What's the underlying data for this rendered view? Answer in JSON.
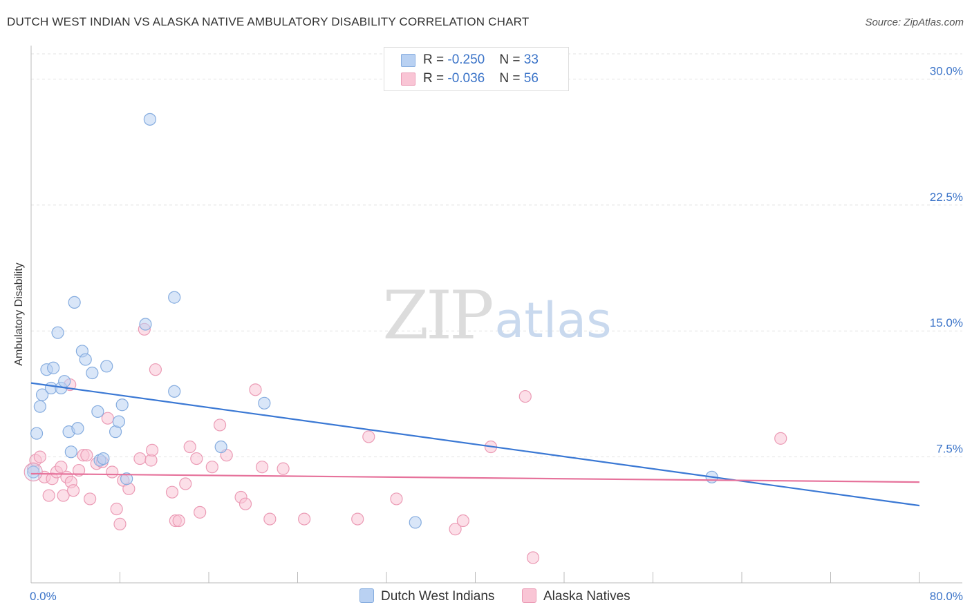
{
  "title": "DUTCH WEST INDIAN VS ALASKA NATIVE AMBULATORY DISABILITY CORRELATION CHART",
  "source": "Source: ZipAtlas.com",
  "watermark": {
    "left": "ZIP",
    "right": "atlas"
  },
  "colors": {
    "blue_fill": "#b9d1f2",
    "blue_stroke": "#85acdf",
    "blue_line": "#3a78d4",
    "pink_fill": "#f9c5d5",
    "pink_stroke": "#eb9bb5",
    "pink_line": "#e6729b",
    "axis_label": "#3a73c8",
    "grid": "#e3e3e3"
  },
  "legend": {
    "rows": [
      {
        "r_label": "R = ",
        "r_value": "-0.250",
        "n_label": "N = ",
        "n_value": "33"
      },
      {
        "r_label": "R = ",
        "r_value": "-0.036",
        "n_label": "N = ",
        "n_value": "56"
      }
    ]
  },
  "bottom_legend": [
    "Dutch West Indians",
    "Alaska Natives"
  ],
  "chart_data": {
    "type": "scatter",
    "title": "DUTCH WEST INDIAN VS ALASKA NATIVE AMBULATORY DISABILITY CORRELATION CHART",
    "xlabel": "",
    "ylabel": "Ambulatory Disability",
    "xlim": [
      0,
      80
    ],
    "ylim": [
      0,
      31.5
    ],
    "x_tick_labels": [
      "0.0%",
      "80.0%"
    ],
    "y_ticks": [
      7.5,
      15.0,
      22.5,
      30.0
    ],
    "y_tick_labels": [
      "7.5%",
      "15.0%",
      "22.5%",
      "30.0%"
    ],
    "grid": true,
    "legend_position": "top-center",
    "series": [
      {
        "name": "Dutch West Indians",
        "color": "#b9d1f2",
        "R": -0.25,
        "N": 33,
        "trend": {
          "x": [
            0,
            80
          ],
          "y": [
            11.9,
            4.6
          ]
        },
        "points": [
          [
            0.2,
            6.6
          ],
          [
            0.5,
            8.9
          ],
          [
            0.8,
            10.5
          ],
          [
            1.0,
            11.2
          ],
          [
            1.4,
            12.7
          ],
          [
            1.8,
            11.6
          ],
          [
            2.0,
            12.8
          ],
          [
            2.4,
            14.9
          ],
          [
            2.7,
            11.6
          ],
          [
            3.0,
            12.0
          ],
          [
            3.4,
            9.0
          ],
          [
            3.6,
            7.8
          ],
          [
            3.9,
            16.7
          ],
          [
            4.2,
            9.2
          ],
          [
            4.6,
            13.8
          ],
          [
            4.9,
            13.3
          ],
          [
            5.5,
            12.5
          ],
          [
            6.0,
            10.2
          ],
          [
            6.2,
            7.3
          ],
          [
            6.5,
            7.4
          ],
          [
            6.8,
            12.9
          ],
          [
            7.6,
            9.0
          ],
          [
            7.9,
            9.6
          ],
          [
            8.2,
            10.6
          ],
          [
            8.6,
            6.2
          ],
          [
            10.3,
            15.4
          ],
          [
            10.7,
            27.6
          ],
          [
            12.9,
            17.0
          ],
          [
            12.9,
            11.4
          ],
          [
            17.1,
            8.1
          ],
          [
            21.0,
            10.7
          ],
          [
            34.6,
            3.6
          ],
          [
            61.3,
            6.3
          ]
        ]
      },
      {
        "name": "Alaska Natives",
        "color": "#f9c5d5",
        "R": -0.036,
        "N": 56,
        "trend": {
          "x": [
            0,
            80
          ],
          "y": [
            6.5,
            6.0
          ]
        },
        "points": [
          [
            0.2,
            6.8
          ],
          [
            0.4,
            7.3
          ],
          [
            0.8,
            7.5
          ],
          [
            1.2,
            6.3
          ],
          [
            1.6,
            5.2
          ],
          [
            1.9,
            6.2
          ],
          [
            2.3,
            6.6
          ],
          [
            2.7,
            6.9
          ],
          [
            2.9,
            5.2
          ],
          [
            3.2,
            6.3
          ],
          [
            3.6,
            6.0
          ],
          [
            3.8,
            5.5
          ],
          [
            4.3,
            6.7
          ],
          [
            4.7,
            7.6
          ],
          [
            5.0,
            7.6
          ],
          [
            5.3,
            5.0
          ],
          [
            5.9,
            7.1
          ],
          [
            6.4,
            7.2
          ],
          [
            6.9,
            9.8
          ],
          [
            7.3,
            6.6
          ],
          [
            7.7,
            4.4
          ],
          [
            8.0,
            3.5
          ],
          [
            8.3,
            6.1
          ],
          [
            8.8,
            5.6
          ],
          [
            9.8,
            7.4
          ],
          [
            10.2,
            15.1
          ],
          [
            10.8,
            7.3
          ],
          [
            10.9,
            7.9
          ],
          [
            11.2,
            12.7
          ],
          [
            12.7,
            5.4
          ],
          [
            13.0,
            3.7
          ],
          [
            13.3,
            3.7
          ],
          [
            13.9,
            5.9
          ],
          [
            14.3,
            8.1
          ],
          [
            14.9,
            7.4
          ],
          [
            15.2,
            4.2
          ],
          [
            16.3,
            6.9
          ],
          [
            17.0,
            9.4
          ],
          [
            17.6,
            7.6
          ],
          [
            18.9,
            5.1
          ],
          [
            19.3,
            4.7
          ],
          [
            20.2,
            11.5
          ],
          [
            20.8,
            6.9
          ],
          [
            21.5,
            3.8
          ],
          [
            22.7,
            6.8
          ],
          [
            24.6,
            3.8
          ],
          [
            29.4,
            3.8
          ],
          [
            30.4,
            8.7
          ],
          [
            32.9,
            5.0
          ],
          [
            38.2,
            3.2
          ],
          [
            38.9,
            3.7
          ],
          [
            41.4,
            8.1
          ],
          [
            44.5,
            11.1
          ],
          [
            45.2,
            1.5
          ],
          [
            67.5,
            8.6
          ],
          [
            3.5,
            11.8
          ]
        ]
      }
    ]
  }
}
